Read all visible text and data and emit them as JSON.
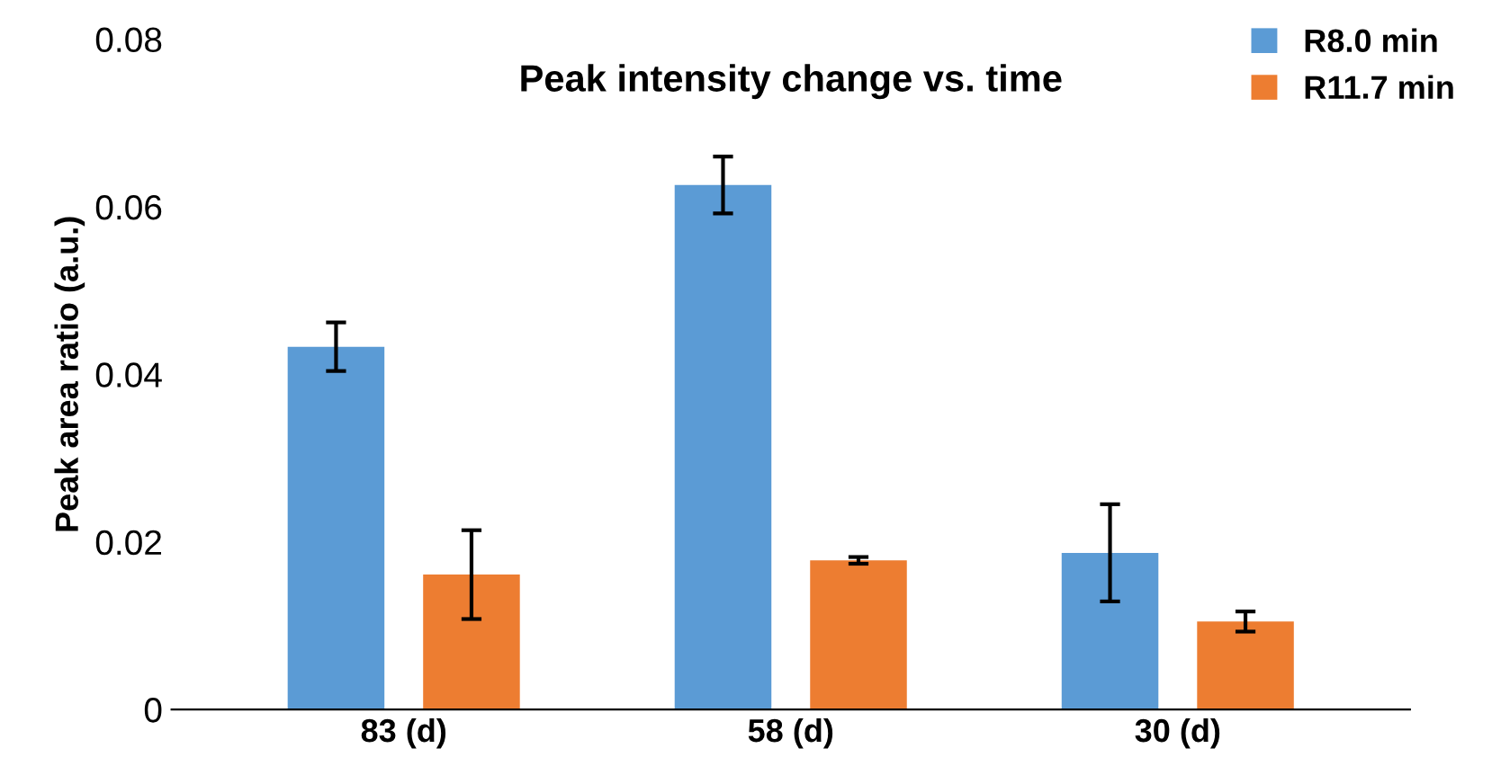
{
  "chart_data": {
    "type": "bar",
    "title": "Peak intensity change vs. time",
    "ylabel": "Peak area ratio (a.u.)",
    "categories": [
      "83 (d)",
      "58 (d)",
      "30 (d)"
    ],
    "series": [
      {
        "name": "R8.0 min",
        "color": "#5b9bd5",
        "values": [
          0.0433,
          0.0626,
          0.0187
        ],
        "errors": [
          0.0029,
          0.0034,
          0.0058
        ]
      },
      {
        "name": "R11.7 min",
        "color": "#ed7d31",
        "values": [
          0.0161,
          0.0178,
          0.0105
        ],
        "errors": [
          0.0053,
          0.0004,
          0.0012
        ]
      }
    ],
    "ylim": [
      0,
      0.08
    ],
    "yticks": [
      0,
      0.02,
      0.04,
      0.06,
      0.08
    ],
    "grid": false,
    "legend": "top right"
  }
}
